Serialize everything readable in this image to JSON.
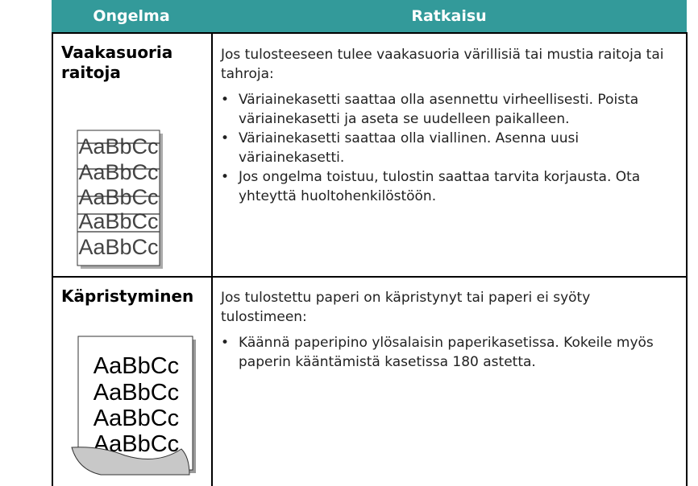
{
  "table": {
    "headers": [
      "Ongelma",
      "Ratkaisu"
    ],
    "rows": [
      {
        "problem": "Vaakasuoria raitoja",
        "sample": [
          "AaBbCc",
          "AaBbCc",
          "AaBbCc",
          "AaBbCc",
          "AaBbCc"
        ],
        "intro": "Jos tulosteeseen tulee vaakasuoria värillisiä tai mustia raitoja tai tahroja:",
        "bullets": [
          "Väriainekasetti saattaa olla asennettu virheellisesti. Poista väriainekasetti ja aseta se uudelleen paikalleen.",
          "Väriainekasetti saattaa olla viallinen. Asenna uusi väriainekasetti.",
          "Jos ongelma toistuu, tulostin saattaa tarvita korjausta. Ota yhteyttä huoltohenkilöstöön."
        ]
      },
      {
        "problem": "Käpristyminen",
        "sample": [
          "AaBbCc",
          "AaBbCc",
          "AaBbCc",
          "AaBbCc"
        ],
        "intro": "Jos tulostettu paperi on käpristynyt tai paperi ei syöty tulostimeen:",
        "bullets": [
          "Käännä paperipino ylösalaisin paperikasetissa. Kokeile myös paperin kääntämistä kasetissa 180 astetta."
        ]
      }
    ]
  }
}
